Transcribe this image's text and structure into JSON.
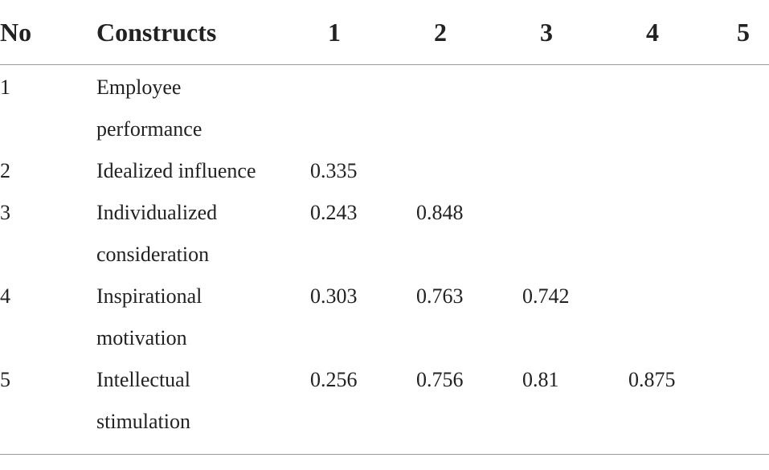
{
  "table": {
    "headers": [
      "No",
      "Constructs",
      "1",
      "2",
      "3",
      "4",
      "5"
    ],
    "rows": [
      {
        "no": "1",
        "construct_lines": [
          "Employee",
          "performance"
        ],
        "values": [
          "",
          "",
          "",
          "",
          ""
        ]
      },
      {
        "no": "2",
        "construct_lines": [
          "Idealized influence"
        ],
        "values": [
          "0.335",
          "",
          "",
          "",
          ""
        ]
      },
      {
        "no": "3",
        "construct_lines": [
          "Individualized",
          "consideration"
        ],
        "values": [
          "0.243",
          "0.848",
          "",
          "",
          ""
        ]
      },
      {
        "no": "4",
        "construct_lines": [
          "Inspirational",
          "motivation"
        ],
        "values": [
          "0.303",
          "0.763",
          "0.742",
          "",
          ""
        ]
      },
      {
        "no": "5",
        "construct_lines": [
          "Intellectual",
          "stimulation"
        ],
        "values": [
          "0.256",
          "0.756",
          "0.81",
          "0.875",
          ""
        ]
      }
    ]
  }
}
